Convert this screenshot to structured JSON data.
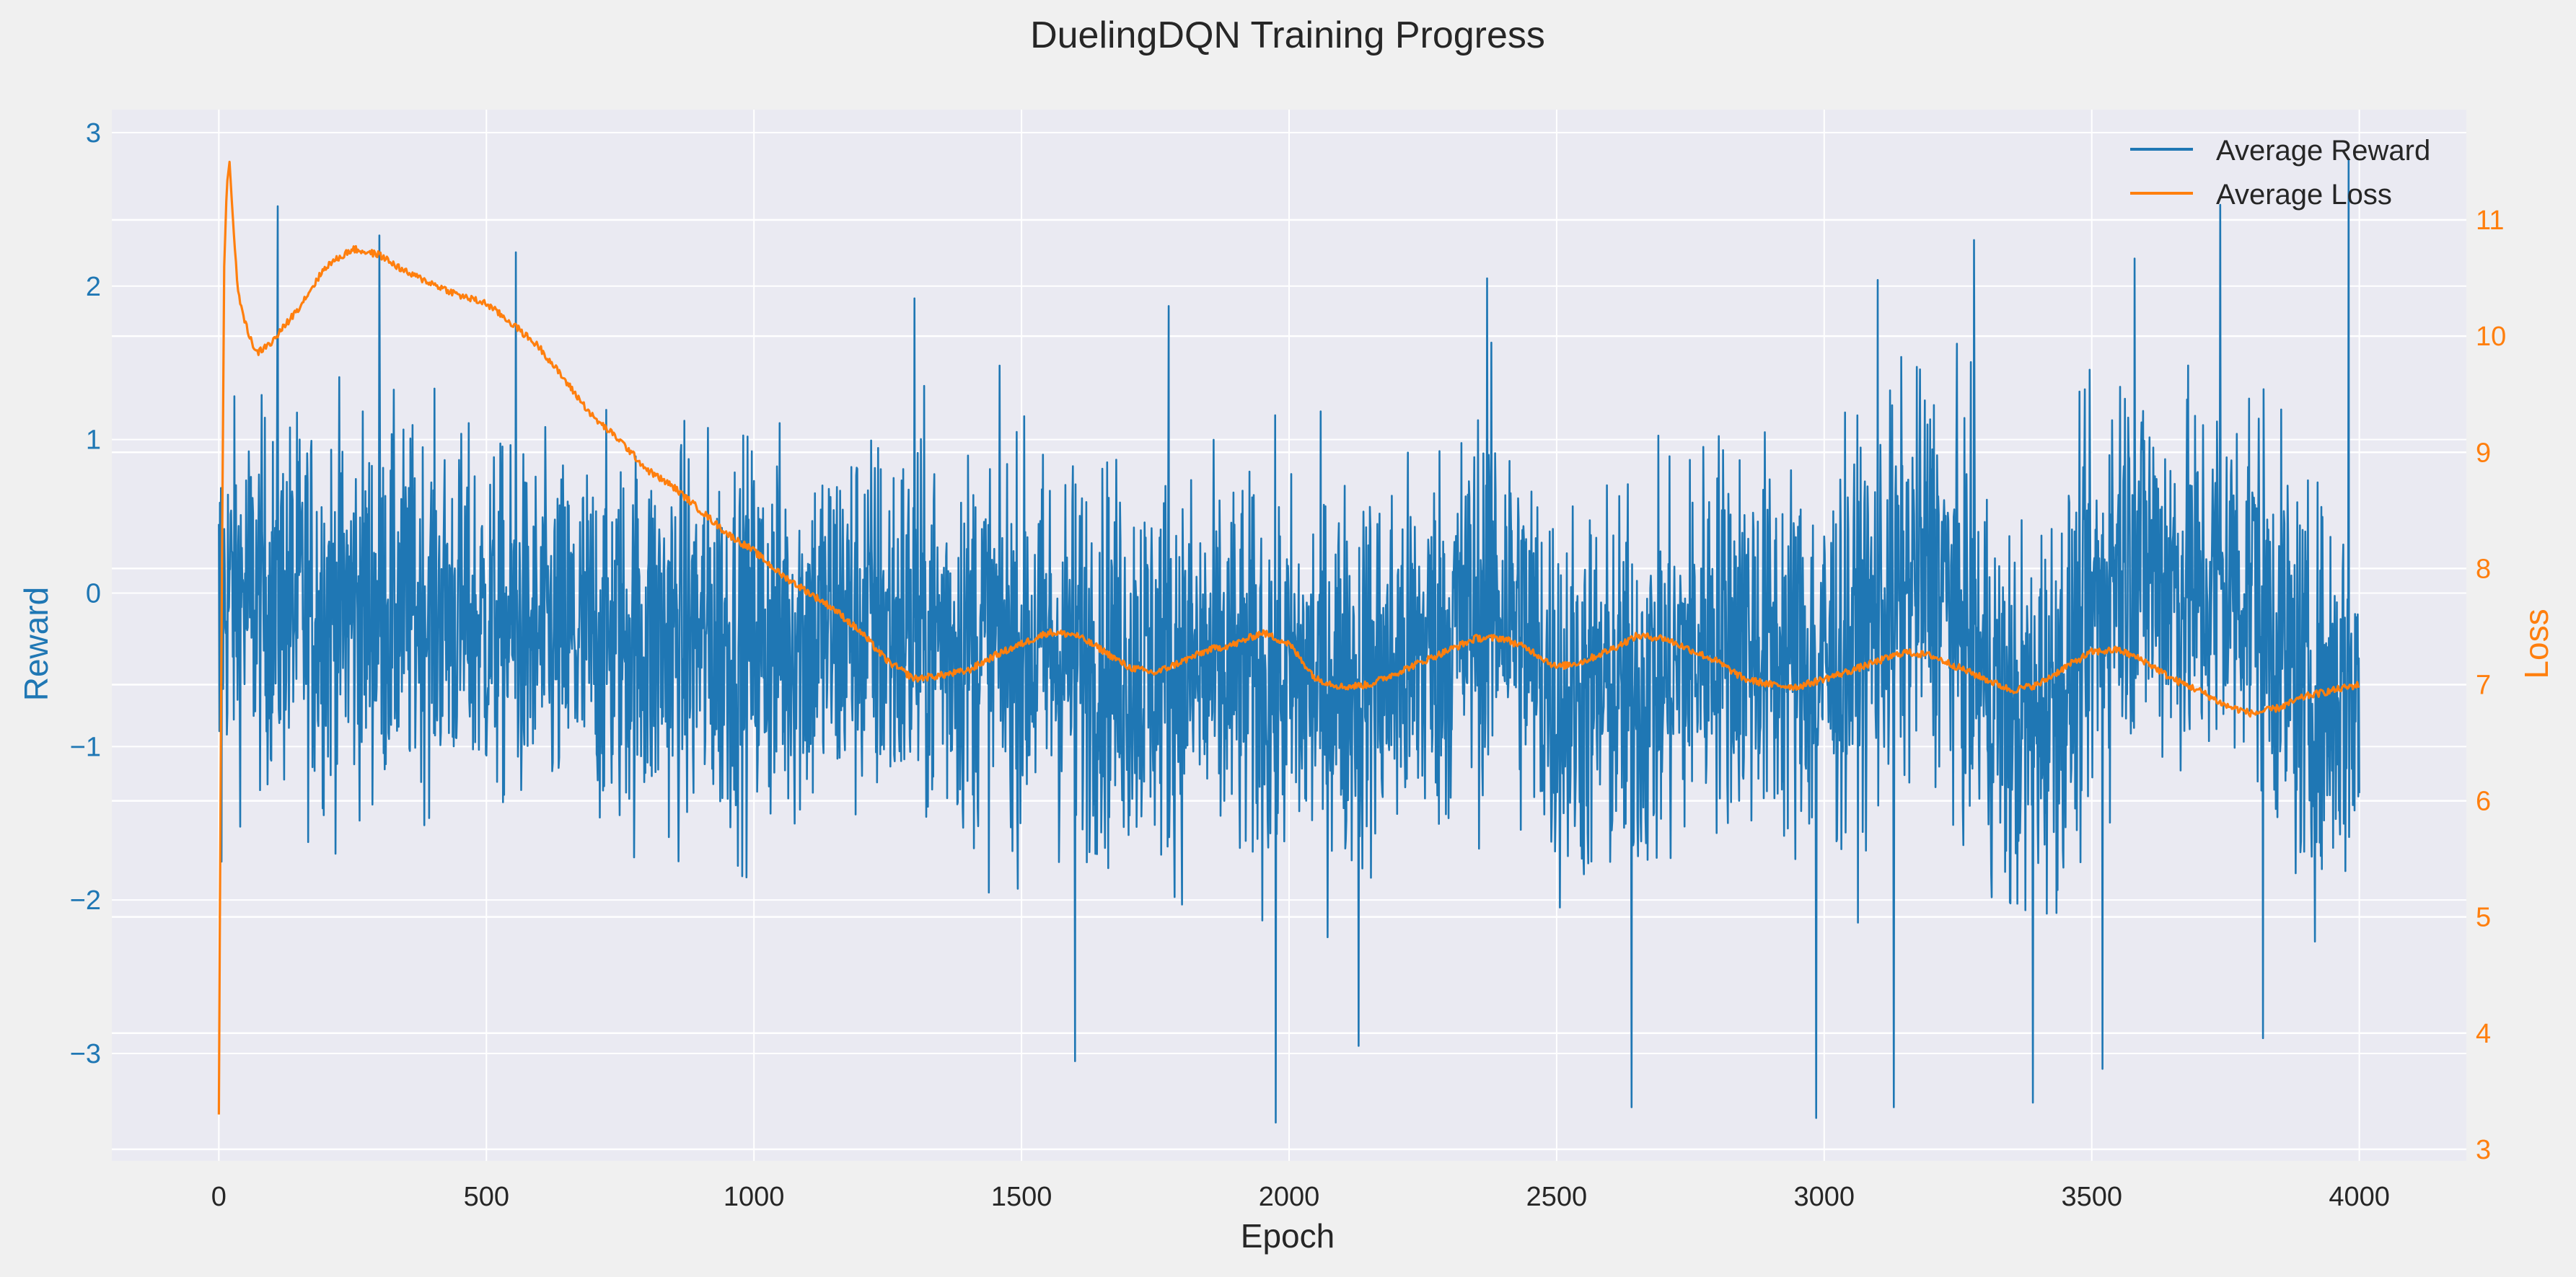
{
  "chart_data": {
    "type": "line",
    "title": "DuelingDQN Training Progress",
    "xlabel": "Epoch",
    "ylabel_left": "Reward",
    "ylabel_right": "Loss",
    "xlim": [
      -200,
      4200
    ],
    "ylim_left": [
      -3.7,
      3.15
    ],
    "ylim_right": [
      2.9,
      11.95
    ],
    "x_ticks": [
      0,
      500,
      1000,
      1500,
      2000,
      2500,
      3000,
      3500,
      4000
    ],
    "y_left_ticks": [
      -3,
      -2,
      -1,
      0,
      1,
      2,
      3
    ],
    "y_left_tick_labels": [
      "−3",
      "−2",
      "−1",
      "0",
      "1",
      "2",
      "3"
    ],
    "y_right_ticks": [
      3,
      4,
      5,
      6,
      7,
      8,
      9,
      10,
      11
    ],
    "grid": true,
    "legend_position": "top-right",
    "x_range": [
      0,
      4000
    ],
    "series": [
      {
        "name": "Average Reward",
        "axis": "left",
        "color": "#1f77b4",
        "envelope": {
          "x": [
            0,
            200,
            400,
            600,
            800,
            1000,
            1200,
            1400,
            1600,
            1800,
            2000,
            2200,
            2400,
            2500,
            2700,
            2800,
            3000,
            3200,
            3350,
            3450,
            3550,
            3700,
            3800,
            3900,
            4000
          ],
          "center": [
            0.0,
            -0.1,
            -0.1,
            -0.3,
            -0.3,
            -0.3,
            -0.2,
            -0.3,
            -0.4,
            -0.5,
            -0.6,
            -0.5,
            0.0,
            -0.7,
            -0.6,
            -0.2,
            -0.5,
            0.2,
            -0.9,
            -0.6,
            0.3,
            0.0,
            0.1,
            -0.7,
            -0.6
          ],
          "spread": [
            0.9,
            1.0,
            0.9,
            0.9,
            1.0,
            1.0,
            1.0,
            1.0,
            1.0,
            1.0,
            1.0,
            1.0,
            1.0,
            1.0,
            1.0,
            1.0,
            1.0,
            1.0,
            1.0,
            1.0,
            1.0,
            1.0,
            1.0,
            1.0,
            1.0
          ]
        },
        "peaks": [
          {
            "x": 110,
            "y": 2.52
          },
          {
            "x": 300,
            "y": 2.33
          },
          {
            "x": 555,
            "y": 2.22
          },
          {
            "x": 1300,
            "y": 1.92
          },
          {
            "x": 1775,
            "y": 1.87
          },
          {
            "x": 2370,
            "y": 2.05
          },
          {
            "x": 3100,
            "y": 2.04
          },
          {
            "x": 3280,
            "y": 2.3
          },
          {
            "x": 3580,
            "y": 2.18
          },
          {
            "x": 3740,
            "y": 2.53
          },
          {
            "x": 3980,
            "y": 2.83
          }
        ],
        "troughs": [
          {
            "x": 5,
            "y": -1.75
          },
          {
            "x": 1600,
            "y": -3.05
          },
          {
            "x": 1975,
            "y": -3.45
          },
          {
            "x": 2130,
            "y": -2.95
          },
          {
            "x": 2640,
            "y": -3.35
          },
          {
            "x": 2985,
            "y": -3.42
          },
          {
            "x": 3130,
            "y": -3.35
          },
          {
            "x": 3390,
            "y": -3.32
          },
          {
            "x": 3520,
            "y": -3.1
          },
          {
            "x": 3820,
            "y": -2.9
          }
        ]
      },
      {
        "name": "Average Loss",
        "axis": "right",
        "color": "#ff7f0e",
        "x": [
          0,
          5,
          10,
          15,
          20,
          25,
          35,
          50,
          70,
          100,
          150,
          200,
          250,
          300,
          350,
          400,
          450,
          500,
          550,
          600,
          650,
          700,
          750,
          800,
          850,
          900,
          950,
          1000,
          1050,
          1100,
          1150,
          1200,
          1250,
          1300,
          1350,
          1400,
          1450,
          1500,
          1550,
          1600,
          1650,
          1700,
          1750,
          1800,
          1850,
          1900,
          1950,
          2000,
          2050,
          2100,
          2150,
          2200,
          2250,
          2300,
          2350,
          2400,
          2450,
          2500,
          2550,
          2600,
          2650,
          2700,
          2750,
          2800,
          2850,
          2900,
          2950,
          3000,
          3050,
          3100,
          3150,
          3200,
          3250,
          3300,
          3350,
          3400,
          3450,
          3500,
          3550,
          3600,
          3650,
          3700,
          3750,
          3800,
          3850,
          3900,
          3950,
          4000
        ],
        "y": [
          3.3,
          7.5,
          10.6,
          11.3,
          11.5,
          11.1,
          10.4,
          10.1,
          9.85,
          9.95,
          10.25,
          10.6,
          10.75,
          10.7,
          10.55,
          10.45,
          10.35,
          10.28,
          10.1,
          9.9,
          9.6,
          9.3,
          9.1,
          8.85,
          8.7,
          8.5,
          8.3,
          8.15,
          7.95,
          7.8,
          7.65,
          7.45,
          7.2,
          7.05,
          7.08,
          7.12,
          7.25,
          7.35,
          7.45,
          7.43,
          7.3,
          7.15,
          7.1,
          7.2,
          7.3,
          7.35,
          7.45,
          7.35,
          7.05,
          6.98,
          7.0,
          7.1,
          7.2,
          7.3,
          7.4,
          7.4,
          7.3,
          7.15,
          7.2,
          7.3,
          7.42,
          7.4,
          7.3,
          7.2,
          7.05,
          7.0,
          6.98,
          7.05,
          7.12,
          7.2,
          7.28,
          7.25,
          7.15,
          7.05,
          6.95,
          7.0,
          7.15,
          7.28,
          7.3,
          7.2,
          7.05,
          6.95,
          6.82,
          6.75,
          6.8,
          6.9,
          6.95,
          7.0
        ]
      }
    ]
  }
}
